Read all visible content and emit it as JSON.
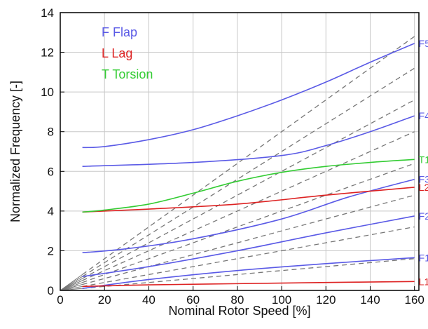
{
  "chart_data": {
    "type": "line",
    "title": "",
    "xlabel": "Nominal Rotor Speed [%]",
    "ylabel": "Normalized Frequency [-]",
    "xlim": [
      0,
      162
    ],
    "ylim": [
      0,
      14
    ],
    "xticks": [
      0,
      20,
      40,
      60,
      80,
      100,
      120,
      140,
      160
    ],
    "yticks": [
      0,
      2,
      4,
      6,
      8,
      10,
      12,
      14
    ],
    "grid": true,
    "legend_position": "top-left",
    "legend": [
      {
        "label": "F Flap",
        "color": "#5a5ae6"
      },
      {
        "label": "L Lag",
        "color": "#dd2222"
      },
      {
        "label": "T Torsion",
        "color": "#33cc33"
      }
    ],
    "series": [
      {
        "label": "F1",
        "color": "#5a5ae6",
        "points": [
          [
            10,
            0.1
          ],
          [
            40,
            0.55
          ],
          [
            80,
            1.0
          ],
          [
            120,
            1.35
          ],
          [
            160,
            1.65
          ]
        ]
      },
      {
        "label": "F2",
        "color": "#5a5ae6",
        "points": [
          [
            10,
            0.7
          ],
          [
            40,
            1.2
          ],
          [
            80,
            2.0
          ],
          [
            120,
            2.9
          ],
          [
            160,
            3.75
          ]
        ]
      },
      {
        "label": "F3",
        "color": "#5a5ae6",
        "points": [
          [
            10,
            1.9
          ],
          [
            30,
            2.1
          ],
          [
            60,
            2.6
          ],
          [
            100,
            3.6
          ],
          [
            130,
            4.7
          ],
          [
            160,
            5.6
          ]
        ]
      },
      {
        "label": "F4",
        "color": "#5a5ae6",
        "points": [
          [
            10,
            6.25
          ],
          [
            60,
            6.45
          ],
          [
            100,
            6.8
          ],
          [
            120,
            7.3
          ],
          [
            140,
            8.0
          ],
          [
            160,
            8.8
          ]
        ]
      },
      {
        "label": "F5",
        "color": "#5a5ae6",
        "points": [
          [
            10,
            7.2
          ],
          [
            20,
            7.25
          ],
          [
            40,
            7.6
          ],
          [
            60,
            8.1
          ],
          [
            80,
            8.8
          ],
          [
            100,
            9.6
          ],
          [
            120,
            10.5
          ],
          [
            140,
            11.5
          ],
          [
            160,
            12.45
          ]
        ]
      },
      {
        "label": "L1",
        "color": "#dd2222",
        "points": [
          [
            10,
            0.2
          ],
          [
            40,
            0.28
          ],
          [
            80,
            0.34
          ],
          [
            120,
            0.4
          ],
          [
            160,
            0.45
          ]
        ]
      },
      {
        "label": "L2",
        "color": "#dd2222",
        "points": [
          [
            10,
            3.95
          ],
          [
            40,
            4.1
          ],
          [
            80,
            4.35
          ],
          [
            120,
            4.8
          ],
          [
            160,
            5.2
          ]
        ]
      },
      {
        "label": "T1",
        "color": "#33cc33",
        "points": [
          [
            10,
            3.95
          ],
          [
            20,
            4.05
          ],
          [
            40,
            4.35
          ],
          [
            60,
            4.9
          ],
          [
            80,
            5.5
          ],
          [
            100,
            5.95
          ],
          [
            120,
            6.25
          ],
          [
            140,
            6.45
          ],
          [
            160,
            6.6
          ]
        ]
      }
    ],
    "per_rev_lines": {
      "color": "#777777",
      "style": "dashed",
      "slopes_per_100pct": [
        1,
        2,
        3,
        4,
        5,
        6,
        7,
        8
      ],
      "x_range": [
        10,
        160
      ]
    }
  }
}
